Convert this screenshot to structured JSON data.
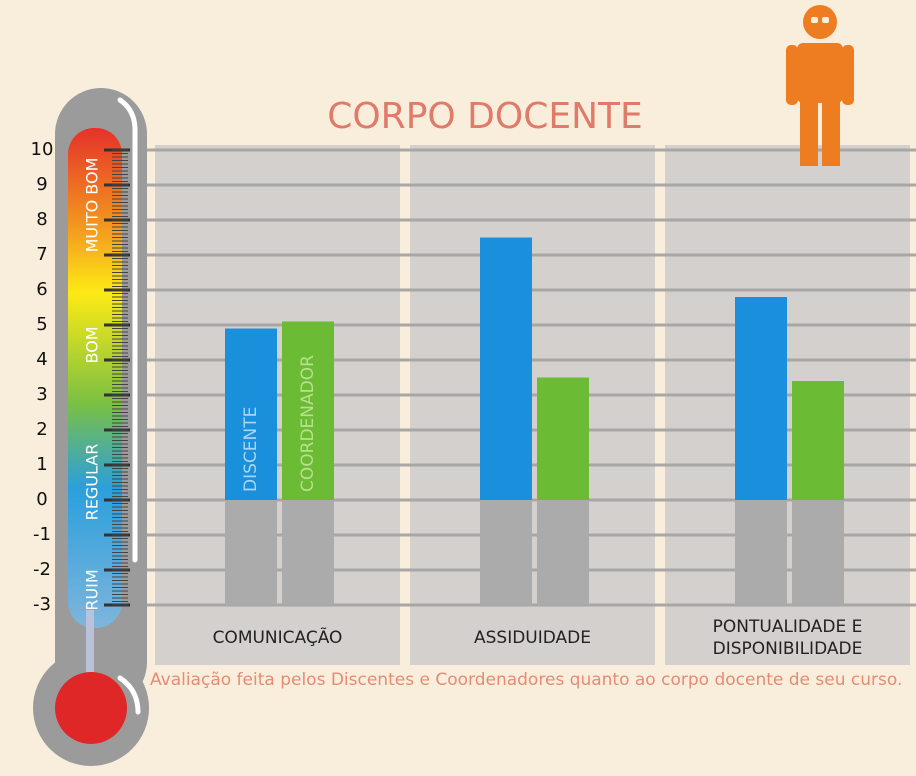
{
  "chart_data": {
    "type": "bar",
    "title": "CORPO DOCENTE",
    "categories": [
      "COMUNICAÇÃO",
      "ASSIDUIDADE",
      "PONTUALIDADE E DISPONIBILIDADE"
    ],
    "series": [
      {
        "name": "DISCENTE",
        "color": "#1a8fdc",
        "values": [
          4.9,
          7.5,
          5.8
        ]
      },
      {
        "name": "COORDENADOR",
        "color": "#6cbb35",
        "values": [
          5.1,
          3.5,
          3.4
        ]
      }
    ],
    "ylim": [
      -3,
      10
    ],
    "yticks": [
      -3,
      -2,
      -1,
      0,
      1,
      2,
      3,
      4,
      5,
      6,
      7,
      8,
      9,
      10
    ],
    "grid": true,
    "scale_labels": [
      "RUIM",
      "REGULAR",
      "BOM",
      "MUITO BOM"
    ],
    "footnote": "Avaliação feita pelos Discentes e Coordenadores quanto ao corpo docente de seu curso."
  }
}
